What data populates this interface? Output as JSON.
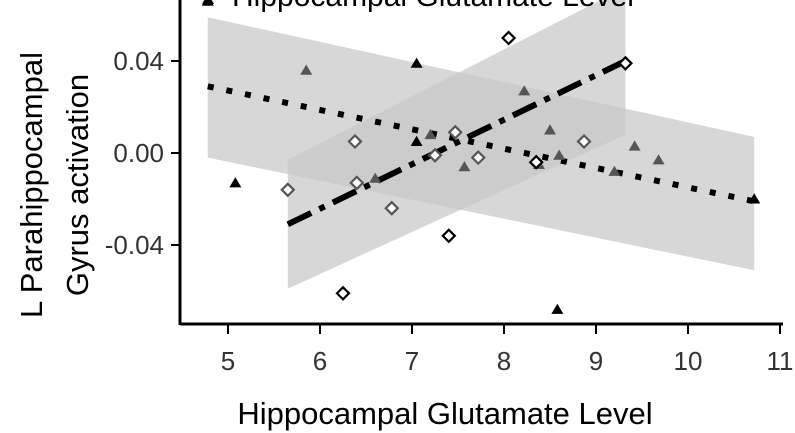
{
  "chart_data": {
    "type": "scatter",
    "xlabel": "Hippocampal Glutamate Level",
    "ylabel_line1": "L Parahippocampal",
    "ylabel_line2": "Gyrus activation",
    "xlim": [
      4.5,
      11
    ],
    "ylim": [
      -0.077,
      0.065
    ],
    "x_ticks": [
      5,
      6,
      7,
      8,
      9,
      10,
      11
    ],
    "x_tick_labels": [
      "5",
      "6",
      "7",
      "8",
      "9",
      "10",
      "11"
    ],
    "y_ticks": [
      -0.04,
      0.0,
      0.04
    ],
    "y_tick_labels": [
      "-0.04",
      "0.00",
      "0.04"
    ],
    "grid": false,
    "legend": "top",
    "legend_fragment": "Hippocampal Glutamate Level",
    "series": [
      {
        "marker": "triangle",
        "color": "#000000",
        "points": [
          [
            4.78,
            0.066
          ],
          [
            5.08,
            -0.013
          ],
          [
            7.05,
            0.039
          ],
          [
            7.05,
            0.005
          ],
          [
            8.58,
            -0.068
          ],
          [
            10.72,
            -0.02
          ]
        ]
      },
      {
        "marker": "triangle",
        "color": "#555555",
        "points": [
          [
            5.85,
            0.036
          ],
          [
            6.6,
            -0.011
          ],
          [
            7.2,
            0.008
          ],
          [
            7.57,
            -0.006
          ],
          [
            8.22,
            0.027
          ],
          [
            8.38,
            -0.005
          ],
          [
            8.5,
            0.01
          ],
          [
            8.6,
            -0.001
          ],
          [
            9.2,
            -0.008
          ],
          [
            9.42,
            0.003
          ],
          [
            9.68,
            -0.003
          ]
        ]
      },
      {
        "marker": "diamond",
        "color": "#000000",
        "points": [
          [
            6.25,
            -0.061
          ],
          [
            7.4,
            -0.036
          ],
          [
            8.05,
            0.05
          ],
          [
            8.35,
            -0.004
          ],
          [
            9.32,
            0.039
          ]
        ]
      },
      {
        "marker": "diamond",
        "color": "#555555",
        "points": [
          [
            5.65,
            -0.016
          ],
          [
            6.38,
            0.005
          ],
          [
            6.4,
            -0.013
          ],
          [
            6.78,
            -0.024
          ],
          [
            7.25,
            -0.001
          ],
          [
            7.47,
            0.009
          ],
          [
            7.72,
            -0.002
          ],
          [
            8.87,
            0.005
          ]
        ]
      }
    ],
    "fits": [
      {
        "style": "dotted",
        "x": [
          4.78,
          10.72
        ],
        "y": [
          0.029,
          -0.021
        ],
        "band_x": [
          4.78,
          10.72
        ],
        "band_upper": [
          0.059,
          0.007
        ],
        "band_lower": [
          -0.002,
          -0.051
        ]
      },
      {
        "style": "dashdot",
        "x": [
          5.65,
          9.32
        ],
        "y": [
          -0.031,
          0.04
        ],
        "band_x": [
          5.65,
          9.32
        ],
        "band_upper": [
          -0.003,
          0.072
        ],
        "band_lower": [
          -0.059,
          0.008
        ]
      }
    ]
  }
}
